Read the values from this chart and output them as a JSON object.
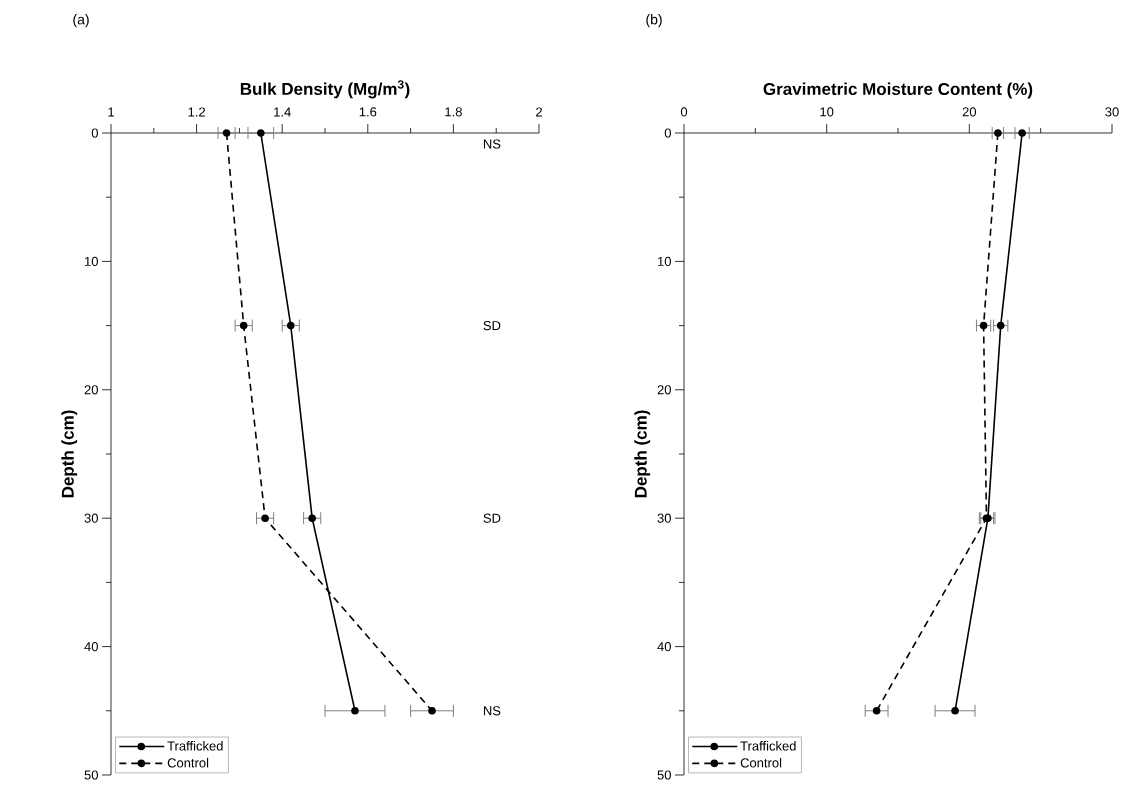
{
  "chart_data": [
    {
      "type": "line",
      "xlabel": "Bulk Density (Mg/m$^{3}$)",
      "ylabel": "Depth (cm)",
      "marker": "circle",
      "legend": "bottom left",
      "grid": false,
      "xlim": [
        1,
        2
      ],
      "ylim": [
        50,
        0
      ],
      "xticks": [
        1,
        {
          "value": 1.1,
          "label": null
        },
        1.2,
        {
          "value": 1.3,
          "label": null
        },
        1.4,
        {
          "value": 1.5,
          "label": null
        },
        1.6,
        {
          "value": 1.7,
          "label": null
        },
        1.8,
        {
          "value": 1.9,
          "label": null
        },
        2
      ],
      "yticks": [
        0,
        {
          "value": 5,
          "label": null
        },
        10,
        {
          "value": 15,
          "label": null
        },
        20,
        {
          "value": 25,
          "label": null
        },
        30,
        {
          "value": 35,
          "label": null
        },
        40,
        {
          "value": 45,
          "label": null
        },
        50
      ],
      "series": [
        {
          "name": "Trafficked",
          "color": "#000000",
          "line_style": "solid",
          "x": [
            1.35,
            1.42,
            1.47,
            1.57
          ],
          "values": [
            0,
            15,
            30,
            45
          ],
          "xerrors": [
            0.03,
            0.02,
            0.02,
            0.07
          ]
        },
        {
          "name": "Control",
          "color": "#000000",
          "line_style": "dashed",
          "x": [
            1.27,
            1.31,
            1.36,
            1.75
          ],
          "values": [
            0,
            15,
            30,
            45
          ],
          "xerrors": [
            0.02,
            0.02,
            0.02,
            0.05
          ]
        }
      ],
      "annotations": [
        "(a)",
        "NS",
        "SD",
        "SD",
        "NS"
      ]
    },
    {
      "type": "line",
      "xlabel": "Gravimetric Moisture Content (%)",
      "ylabel": "Depth (cm)",
      "marker": "circle",
      "legend": "bottom left",
      "grid": false,
      "xlim": [
        0,
        30
      ],
      "ylim": [
        50,
        0
      ],
      "xticks": [
        0,
        {
          "value": 5,
          "label": null
        },
        10,
        {
          "value": 15,
          "label": null
        },
        20,
        {
          "value": 25,
          "label": null
        },
        30
      ],
      "yticks": [
        0,
        {
          "value": 5,
          "label": null
        },
        10,
        {
          "value": 15,
          "label": null
        },
        20,
        {
          "value": 25,
          "label": null
        },
        30,
        {
          "value": 35,
          "label": null
        },
        40,
        {
          "value": 45,
          "label": null
        },
        50
      ],
      "series": [
        {
          "name": "Trafficked",
          "color": "#000000",
          "line_style": "solid",
          "x": [
            23.7,
            22.2,
            21.3,
            19.0
          ],
          "values": [
            0,
            15,
            30,
            45
          ],
          "xerrors": [
            0.5,
            0.5,
            0.5,
            1.4
          ]
        },
        {
          "name": "Control",
          "color": "#000000",
          "line_style": "dashed",
          "x": [
            22.0,
            21.0,
            21.2,
            13.5
          ],
          "values": [
            0,
            15,
            30,
            45
          ],
          "xerrors": [
            0.4,
            0.5,
            0.5,
            0.8
          ]
        }
      ],
      "annotations": [
        "(b)"
      ]
    }
  ]
}
